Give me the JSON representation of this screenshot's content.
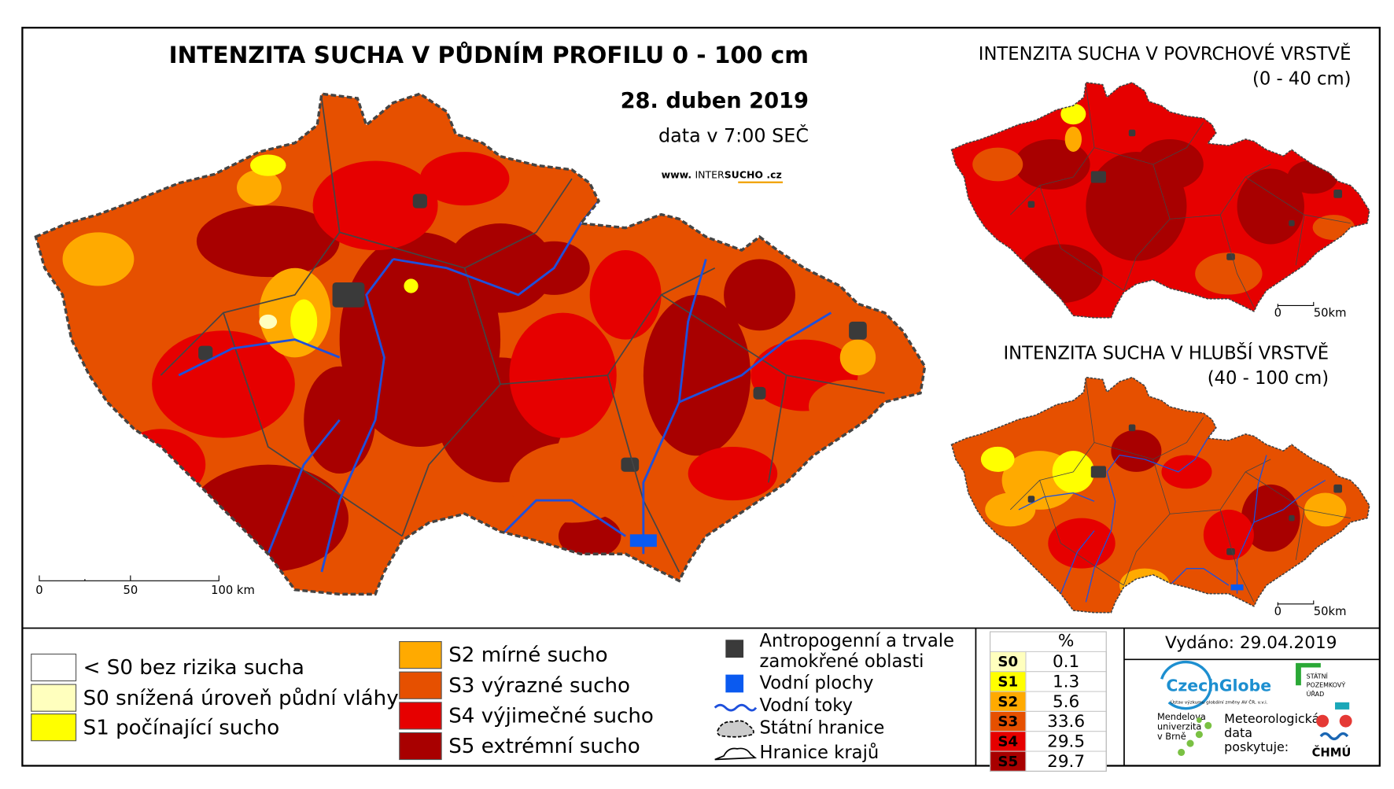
{
  "title": "INTENZITA SUCHA V PŮDNÍM PROFILU 0 - 100 cm",
  "date": "28. duben 2019",
  "data_time": "data v 7:00 SEČ",
  "website": {
    "prefix": "www.",
    "name_a": "INTER",
    "name_b": "SUCHO",
    "suffix": ".cz"
  },
  "main_scale": {
    "labels": [
      "0",
      "50",
      "100 km"
    ]
  },
  "insets": [
    {
      "title": "INTENZITA SUCHA V POVRCHOVÉ VRSTVĚ",
      "subtitle": "(0 - 40 cm)",
      "scale_labels": [
        "0",
        "50km"
      ]
    },
    {
      "title": "INTENZITA SUCHA V HLUBŠÍ VRSTVĚ",
      "subtitle": "(40 - 100 cm)",
      "scale_labels": [
        "0",
        "50km"
      ]
    }
  ],
  "legend": {
    "classes": [
      {
        "label": "< S0 bez rizika sucha",
        "color": "#ffffff"
      },
      {
        "label": "S0 snížená úroveň půdní vláhy",
        "color": "#ffffbe"
      },
      {
        "label": "S1 počínající sucho",
        "color": "#ffff00"
      },
      {
        "label": "S2 mírné sucho",
        "color": "#ffaa00"
      },
      {
        "label": "S3 výrazné sucho",
        "color": "#e65000"
      },
      {
        "label": "S4 výjimečné sucho",
        "color": "#e60000"
      },
      {
        "label": "S5 extrémní sucho",
        "color": "#a80000"
      }
    ],
    "symbols": [
      {
        "label": [
          "Antropogenní a trvale",
          "zamokřené oblasti"
        ]
      },
      {
        "label": [
          "Vodní plochy"
        ]
      },
      {
        "label": [
          "Vodní toky"
        ]
      },
      {
        "label": [
          "Státní hranice"
        ]
      },
      {
        "label": [
          "Hranice krajů"
        ]
      }
    ]
  },
  "stats": {
    "header": "%",
    "rows": [
      {
        "code": "S0",
        "percent": 0.1
      },
      {
        "code": "S1",
        "percent": 1.3
      },
      {
        "code": "S2",
        "percent": 5.6
      },
      {
        "code": "S3",
        "percent": 33.6
      },
      {
        "code": "S4",
        "percent": 29.5
      },
      {
        "code": "S5",
        "percent": 29.7
      }
    ]
  },
  "footer": {
    "issued": "Vydáno: 29.04.2019",
    "czechglobe": "CzechGlobe",
    "czechglobe_sub": "Ústav výzkumu globální změny AV ČR, v.v.i.",
    "spu": [
      "STÁTNÍ",
      "POZEMKOVÝ",
      "ÚŘAD"
    ],
    "mendelu": [
      "Mendelova",
      "univerzita",
      "v Brně"
    ],
    "chmi_note": [
      "Meteorologická",
      "data",
      "poskytuje:"
    ],
    "chmi": "ČHMÚ"
  }
}
